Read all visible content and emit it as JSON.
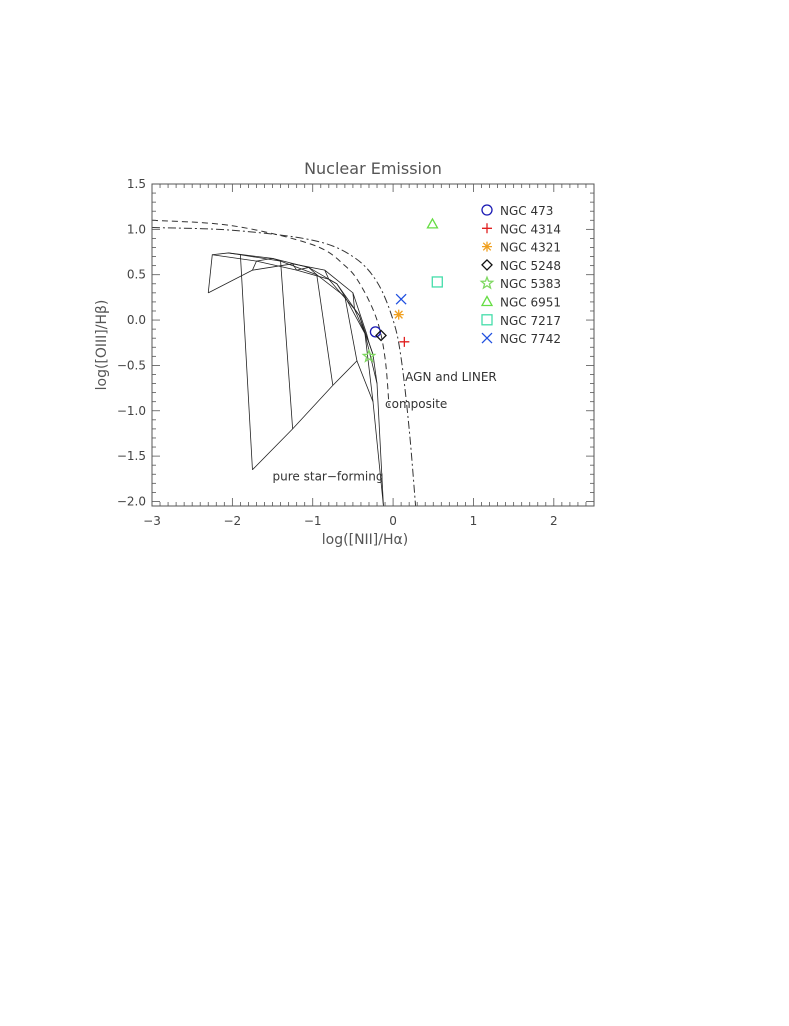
{
  "chart_data": {
    "type": "scatter",
    "title": "Nuclear Emission",
    "xlabel": "log([NII]/Hα)",
    "ylabel": "log([OIII]/Hβ)",
    "xlim": [
      -3,
      2.5
    ],
    "ylim": [
      -2.05,
      1.5
    ],
    "x_ticks": [
      -3,
      -2,
      -1,
      0,
      1,
      2
    ],
    "x_tick_labels": [
      "−3",
      "−2",
      "−1",
      "0",
      "1",
      "2"
    ],
    "y_ticks": [
      1.5,
      1.0,
      0.5,
      0.0,
      -0.5,
      -1.0,
      -1.5,
      -2.0
    ],
    "y_tick_labels": [
      "1.5",
      "1.0",
      "0.5",
      "0.0",
      "−0.5",
      "−1.0",
      "−1.5",
      "−2.0"
    ],
    "legend_position": "top-right",
    "series": [
      {
        "name": "NGC 473",
        "marker": "circle",
        "color": "#1a1ab4",
        "x": -0.22,
        "y": -0.13
      },
      {
        "name": "NGC 4314",
        "marker": "plus",
        "color": "#e02020",
        "x": 0.14,
        "y": -0.24
      },
      {
        "name": "NGC 4321",
        "marker": "asterisk",
        "color": "#f0a020",
        "x": 0.07,
        "y": 0.06
      },
      {
        "name": "NGC 5248",
        "marker": "diamond",
        "color": "#111111",
        "x": -0.15,
        "y": -0.17
      },
      {
        "name": "NGC 5383",
        "marker": "star",
        "color": "#7ed860",
        "x": -0.3,
        "y": -0.4
      },
      {
        "name": "NGC 6951",
        "marker": "triangle",
        "color": "#66dd44",
        "x": 0.49,
        "y": 1.06
      },
      {
        "name": "NGC 7217",
        "marker": "square",
        "color": "#44ddaa",
        "x": 0.55,
        "y": 0.42
      },
      {
        "name": "NGC 7742",
        "marker": "cross",
        "color": "#2050e0",
        "x": 0.1,
        "y": 0.23
      }
    ],
    "annotations": [
      {
        "text": "AGN and LINER",
        "x": 0.15,
        "y": -0.67
      },
      {
        "text": "composite",
        "x": -0.1,
        "y": -0.97
      },
      {
        "text": "pure star−forming",
        "x": -1.5,
        "y": -1.77
      }
    ],
    "demarcation_lines": [
      {
        "type": "dash-dot",
        "x": [
          -3.0,
          -2.0,
          -1.0,
          -0.5,
          -0.2,
          0.0,
          0.1,
          0.2,
          0.28
        ],
        "y": [
          1.02,
          0.99,
          0.88,
          0.7,
          0.42,
          0.0,
          -0.42,
          -1.2,
          -2.05
        ]
      },
      {
        "type": "dashed",
        "x": [
          -3.0,
          -2.0,
          -1.0,
          -0.6,
          -0.4,
          -0.2,
          -0.1,
          -0.05
        ],
        "y": [
          1.1,
          1.04,
          0.83,
          0.6,
          0.38,
          0.0,
          -0.42,
          -0.95
        ]
      }
    ],
    "model_grid": {
      "rows": [
        {
          "x": [
            -2.3,
            -1.75,
            -1.25,
            -0.85,
            -0.5,
            -0.33
          ],
          "y": [
            0.3,
            0.55,
            0.62,
            0.55,
            0.3,
            -0.15
          ]
        },
        {
          "x": [
            -2.25,
            -1.7,
            -1.2,
            -0.8,
            -0.48,
            -0.3
          ],
          "y": [
            0.72,
            0.65,
            0.55,
            0.45,
            0.12,
            -0.25
          ]
        },
        {
          "x": [
            -2.05,
            -1.5,
            -1.05,
            -0.7,
            -0.42,
            -0.25
          ],
          "y": [
            0.74,
            0.68,
            0.58,
            0.4,
            0.05,
            -0.38
          ]
        },
        {
          "x": [
            -1.9,
            -1.4,
            -0.95,
            -0.6,
            -0.35,
            -0.2
          ],
          "y": [
            0.72,
            0.65,
            0.5,
            0.26,
            -0.15,
            -0.7
          ]
        },
        {
          "x": [
            -1.75,
            -1.25,
            -0.75,
            -0.45,
            -0.25,
            -0.12
          ],
          "y": [
            -1.65,
            -1.2,
            -0.72,
            -0.45,
            -0.9,
            -2.05
          ]
        }
      ]
    }
  }
}
